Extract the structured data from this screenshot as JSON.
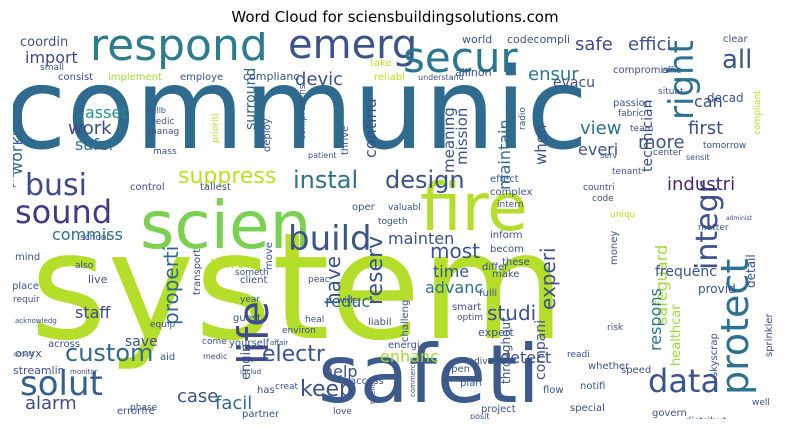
{
  "chart_data": {
    "type": "wordcloud",
    "title": "Word Cloud for sciensbuildingsolutions.com",
    "words": [
      {
        "text": "communic",
        "color": "#2f6b8e"
      },
      {
        "text": "system",
        "color": "#b5de2b"
      },
      {
        "text": "safeti",
        "color": "#3e5a8a"
      },
      {
        "text": "scien",
        "color": "#7ad151"
      },
      {
        "text": "fire",
        "color": "#b5de2b"
      },
      {
        "text": "respond",
        "color": "#2c7b8e"
      },
      {
        "text": "emerg",
        "color": "#3b528b"
      },
      {
        "text": "secur",
        "color": "#2a788e"
      },
      {
        "text": "life",
        "color": "#3e4a89"
      },
      {
        "text": "build",
        "color": "#3b528b"
      },
      {
        "text": "solut",
        "color": "#35608d"
      },
      {
        "text": "sound",
        "color": "#443983"
      },
      {
        "text": "busi",
        "color": "#3e4a89"
      },
      {
        "text": "data",
        "color": "#3b528b"
      },
      {
        "text": "protect",
        "color": "#2c728e"
      },
      {
        "text": "integr",
        "color": "#3b528b"
      },
      {
        "text": "right",
        "color": "#2c728e"
      },
      {
        "text": "all",
        "color": "#3b528b"
      },
      {
        "text": "instal",
        "color": "#2c728e"
      },
      {
        "text": "design",
        "color": "#3b528b"
      },
      {
        "text": "custom",
        "color": "#31688e"
      },
      {
        "text": "electr",
        "color": "#3b528b"
      },
      {
        "text": "keep",
        "color": "#3b528b"
      },
      {
        "text": "alarm",
        "color": "#3e4a89"
      },
      {
        "text": "ensur",
        "color": "#2a788e"
      },
      {
        "text": "safe",
        "color": "#3e4a89"
      },
      {
        "text": "effici",
        "color": "#3b528b"
      },
      {
        "text": "import",
        "color": "#3e4a89"
      },
      {
        "text": "devic",
        "color": "#3b528b"
      },
      {
        "text": "suppress",
        "color": "#bddf26"
      },
      {
        "text": "industri",
        "color": "#482878"
      },
      {
        "text": "view",
        "color": "#2c728e"
      },
      {
        "text": "first",
        "color": "#3b528b"
      },
      {
        "text": "more",
        "color": "#3b528b"
      },
      {
        "text": "work",
        "color": "#3e4a89"
      },
      {
        "text": "safer",
        "color": "#2c728e"
      },
      {
        "text": "asset",
        "color": "#21918c"
      },
      {
        "text": "reserv",
        "color": "#3b528b"
      },
      {
        "text": "have",
        "color": "#3b528b"
      },
      {
        "text": "most",
        "color": "#3b528b"
      },
      {
        "text": "studi",
        "color": "#3b528b"
      },
      {
        "text": "experi",
        "color": "#3b528b"
      },
      {
        "text": "properti",
        "color": "#31688e"
      },
      {
        "text": "staff",
        "color": "#3e4a89"
      },
      {
        "text": "enhanc",
        "color": "#a0da39"
      },
      {
        "text": "detect",
        "color": "#3b528b"
      },
      {
        "text": "case",
        "color": "#3b528b"
      },
      {
        "text": "facil",
        "color": "#31688e"
      },
      {
        "text": "help",
        "color": "#3b528b"
      },
      {
        "text": "time",
        "color": "#3b528b"
      },
      {
        "text": "advanc",
        "color": "#2c728e"
      },
      {
        "text": "mainten",
        "color": "#3b528b"
      },
      {
        "text": "safeguard",
        "color": "#a0da39"
      },
      {
        "text": "respons",
        "color": "#2c728e"
      },
      {
        "text": "commiss",
        "color": "#2c728e"
      },
      {
        "text": "part",
        "color": "#bddf26"
      },
      {
        "text": "reduc",
        "color": "#31688e"
      },
      {
        "text": "save",
        "color": "#3b528b"
      },
      {
        "text": "continu",
        "color": "#3b528b"
      },
      {
        "text": "meaning",
        "color": "#3b528b"
      },
      {
        "text": "mission",
        "color": "#3b528b"
      },
      {
        "text": "maintain",
        "color": "#31688e"
      },
      {
        "text": "when",
        "color": "#3b528b"
      },
      {
        "text": "everi",
        "color": "#3b528b"
      },
      {
        "text": "technician",
        "color": "#3b528b"
      },
      {
        "text": "can",
        "color": "#3b528b"
      },
      {
        "text": "evacu",
        "color": "#3b528b"
      },
      {
        "text": "surround",
        "color": "#31688e"
      },
      {
        "text": "coordin",
        "color": "#3b528b"
      },
      {
        "text": "workplac",
        "color": "#31688e"
      },
      {
        "text": "engin",
        "color": "#3b528b"
      },
      {
        "text": "compani",
        "color": "#3b528b"
      },
      {
        "text": "detail",
        "color": "#3b528b"
      },
      {
        "text": "provid",
        "color": "#3b528b"
      },
      {
        "text": "frequenc",
        "color": "#3b528b"
      },
      {
        "text": "healthcar",
        "color": "#a0da39"
      },
      {
        "text": "throughout",
        "color": "#3b528b"
      },
      {
        "text": "retransmit",
        "color": "#3b528b"
      },
      {
        "text": "visionari",
        "color": "#3b528b"
      },
      {
        "text": "world",
        "color": "#3b528b"
      },
      {
        "text": "codecompli",
        "color": "#3b528b"
      },
      {
        "text": "clear",
        "color": "#3b528b"
      },
      {
        "text": "decad",
        "color": "#3b528b"
      },
      {
        "text": "compliant",
        "color": "#bddf26"
      },
      {
        "text": "allinon",
        "color": "#3b528b"
      },
      {
        "text": "complianc",
        "color": "#3b528b"
      },
      {
        "text": "implement",
        "color": "#a0da39"
      },
      {
        "text": "consist",
        "color": "#3b528b"
      },
      {
        "text": "employe",
        "color": "#3b528b"
      },
      {
        "text": "reliabl",
        "color": "#bddf26"
      },
      {
        "text": "take",
        "color": "#bddf26"
      },
      {
        "text": "small",
        "color": "#3b528b"
      },
      {
        "text": "compromis",
        "color": "#3b528b"
      },
      {
        "text": "offic",
        "color": "#3b528b"
      },
      {
        "text": "understand",
        "color": "#3b528b"
      },
      {
        "text": "situat",
        "color": "#3b528b"
      },
      {
        "text": "passion",
        "color": "#3b528b"
      },
      {
        "text": "fabric",
        "color": "#3b528b"
      },
      {
        "text": "team",
        "color": "#3b528b"
      },
      {
        "text": "center",
        "color": "#3b528b"
      },
      {
        "text": "sensit",
        "color": "#3b528b"
      },
      {
        "text": "tomorrow",
        "color": "#3b528b"
      },
      {
        "text": "radio",
        "color": "#3b528b"
      },
      {
        "text": "wellb",
        "color": "#3b528b"
      },
      {
        "text": "manag",
        "color": "#3b528b"
      },
      {
        "text": "dedic",
        "color": "#3b528b"
      },
      {
        "text": "mass",
        "color": "#3b528b"
      },
      {
        "text": "prioriti",
        "color": "#bddf26"
      },
      {
        "text": "deploy",
        "color": "#3b528b"
      },
      {
        "text": "comprehens",
        "color": "#3b528b"
      },
      {
        "text": "patient",
        "color": "#3b528b"
      },
      {
        "text": "thrive",
        "color": "#3b528b"
      },
      {
        "text": "serv",
        "color": "#3b528b"
      },
      {
        "text": "control",
        "color": "#3b528b"
      },
      {
        "text": "tallest",
        "color": "#3b528b"
      },
      {
        "text": "process",
        "color": "#3b528b"
      },
      {
        "text": "effect",
        "color": "#3b528b"
      },
      {
        "text": "complex",
        "color": "#3b528b"
      },
      {
        "text": "countri",
        "color": "#3b528b"
      },
      {
        "text": "code",
        "color": "#3b528b"
      },
      {
        "text": "tenant",
        "color": "#3b528b"
      },
      {
        "text": "intern",
        "color": "#3b528b"
      },
      {
        "text": "valuabl",
        "color": "#3b528b"
      },
      {
        "text": "oper",
        "color": "#3b528b"
      },
      {
        "text": "togeth",
        "color": "#3b528b"
      },
      {
        "text": "inform",
        "color": "#3b528b"
      },
      {
        "text": "becom",
        "color": "#3b528b"
      },
      {
        "text": "these",
        "color": "#3b528b"
      },
      {
        "text": "make",
        "color": "#3b528b"
      },
      {
        "text": "uniqu",
        "color": "#bddf26"
      },
      {
        "text": "administ",
        "color": "#3b528b"
      },
      {
        "text": "matter",
        "color": "#3b528b"
      },
      {
        "text": "school",
        "color": "#3b528b"
      },
      {
        "text": "client",
        "color": "#3b528b"
      },
      {
        "text": "peac",
        "color": "#3b528b"
      },
      {
        "text": "wide",
        "color": "#3b528b"
      },
      {
        "text": "differ",
        "color": "#3b528b"
      },
      {
        "text": "smart",
        "color": "#3b528b"
      },
      {
        "text": "optim",
        "color": "#3b528b"
      },
      {
        "text": "money",
        "color": "#3b528b"
      },
      {
        "text": "mind",
        "color": "#3b528b"
      },
      {
        "text": "also",
        "color": "#3b528b"
      },
      {
        "text": "transport",
        "color": "#3b528b"
      },
      {
        "text": "move",
        "color": "#3b528b"
      },
      {
        "text": "someth",
        "color": "#3b528b"
      },
      {
        "text": "year",
        "color": "#3b528b"
      },
      {
        "text": "heal",
        "color": "#3b528b"
      },
      {
        "text": "fulli",
        "color": "#3b528b"
      },
      {
        "text": "expert",
        "color": "#3b528b"
      },
      {
        "text": "live",
        "color": "#3b528b"
      },
      {
        "text": "place",
        "color": "#3b528b"
      },
      {
        "text": "requir",
        "color": "#3b528b"
      },
      {
        "text": "guest",
        "color": "#3b528b"
      },
      {
        "text": "yourself",
        "color": "#3b528b"
      },
      {
        "text": "equip",
        "color": "#3b528b"
      },
      {
        "text": "environ",
        "color": "#3b528b"
      },
      {
        "text": "liabil",
        "color": "#3b528b"
      },
      {
        "text": "challeng",
        "color": "#3b528b"
      },
      {
        "text": "energi",
        "color": "#3b528b"
      },
      {
        "text": "risk",
        "color": "#3b528b"
      },
      {
        "text": "acknowledg",
        "color": "#3b528b"
      },
      {
        "text": "affair",
        "color": "#3b528b"
      },
      {
        "text": "onyx",
        "color": "#3b528b"
      },
      {
        "text": "across",
        "color": "#3b528b"
      },
      {
        "text": "accredit",
        "color": "#3b528b"
      },
      {
        "text": "streamlin",
        "color": "#3b528b"
      },
      {
        "text": "monitor",
        "color": "#3b528b"
      },
      {
        "text": "aid",
        "color": "#3b528b"
      },
      {
        "text": "come",
        "color": "#3b528b"
      },
      {
        "text": "medic",
        "color": "#3b528b"
      },
      {
        "text": "includ",
        "color": "#3b528b"
      },
      {
        "text": "open",
        "color": "#3b528b"
      },
      {
        "text": "divers",
        "color": "#3b528b"
      },
      {
        "text": "readi",
        "color": "#3b528b"
      },
      {
        "text": "whether",
        "color": "#3b528b"
      },
      {
        "text": "speed",
        "color": "#3b528b"
      },
      {
        "text": "skyscrap",
        "color": "#3b528b"
      },
      {
        "text": "sprinkler",
        "color": "#3b528b"
      },
      {
        "text": "notifi",
        "color": "#3b528b"
      },
      {
        "text": "access",
        "color": "#3b528b"
      },
      {
        "text": "has",
        "color": "#3b528b"
      },
      {
        "text": "creat",
        "color": "#3b528b"
      },
      {
        "text": "plan",
        "color": "#3b528b"
      },
      {
        "text": "flow",
        "color": "#3b528b"
      },
      {
        "text": "special",
        "color": "#3b528b"
      },
      {
        "text": "errorfre",
        "color": "#3b528b"
      },
      {
        "text": "phase",
        "color": "#3b528b"
      },
      {
        "text": "partner",
        "color": "#3b528b"
      },
      {
        "text": "love",
        "color": "#3b528b"
      },
      {
        "text": "talent",
        "color": "#3b528b"
      },
      {
        "text": "commerci",
        "color": "#3b528b"
      },
      {
        "text": "remain",
        "color": "#3b528b"
      },
      {
        "text": "posit",
        "color": "#3b528b"
      },
      {
        "text": "project",
        "color": "#3b528b"
      },
      {
        "text": "govern",
        "color": "#3b528b"
      },
      {
        "text": "distribut",
        "color": "#3b528b"
      },
      {
        "text": "well",
        "color": "#3b528b"
      }
    ]
  }
}
